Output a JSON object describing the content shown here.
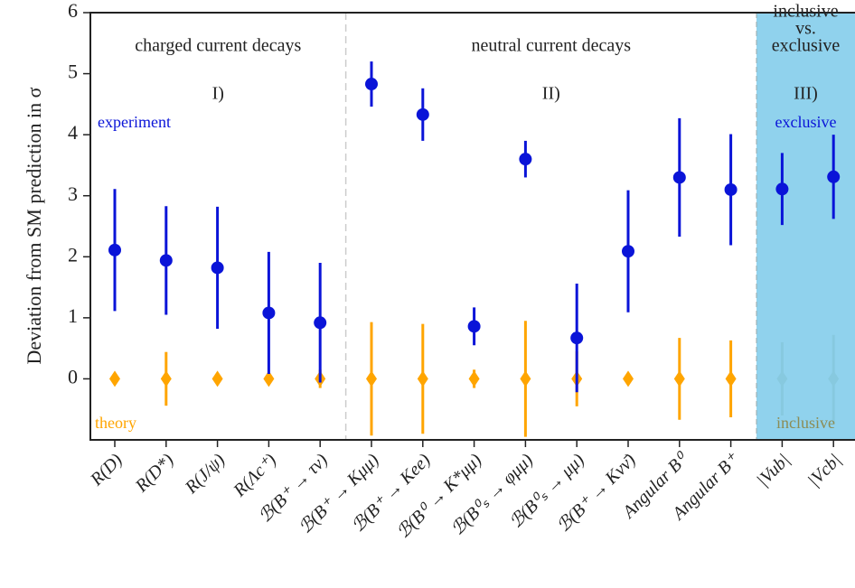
{
  "chart_data": {
    "type": "errorbar",
    "y_label": "Deviation from SM prediction in σ",
    "categories": [
      "R(D)",
      "R(D*)",
      "R(J/ψ)",
      "R(Λc⁺)",
      "ℬ(B⁺ → τν)",
      "ℬ(B⁺ → Kμμ)",
      "ℬ(B⁺ → Kee)",
      "ℬ(B⁰ → K*μμ)",
      "ℬ(B⁰ₛ → φμμ)",
      "ℬ(B⁰ₛ → μμ)",
      "ℬ(B⁺ → Kνν̄)",
      "Angular B⁰",
      "Angular B⁺",
      "|Vub|",
      "|Vcb|"
    ],
    "series": [
      {
        "name": "experiment",
        "region_name": "exclusive",
        "color": "#0a14d8",
        "marker": "circle",
        "values": [
          2.11,
          1.94,
          1.82,
          1.08,
          0.92,
          4.83,
          4.33,
          0.86,
          3.6,
          0.67,
          2.09,
          3.3,
          3.1,
          3.11,
          3.31
        ],
        "errors": [
          1.0,
          0.89,
          1.0,
          1.0,
          0.98,
          0.37,
          0.43,
          0.31,
          0.3,
          0.89,
          1.0,
          0.97,
          0.91,
          0.59,
          0.69
        ]
      },
      {
        "name": "theory",
        "region_name": "inclusive",
        "color": "#ffa500",
        "region_color": "#8c8c55",
        "marker": "diamond",
        "values": [
          0,
          0,
          0,
          0,
          0,
          0,
          0,
          0,
          0,
          0,
          0,
          0,
          0,
          0,
          0
        ],
        "errors": [
          0,
          0.44,
          0,
          0.05,
          0.15,
          0.93,
          0.9,
          0.15,
          0.95,
          0.45,
          0,
          0.67,
          0.63,
          0.6,
          0.72
        ]
      }
    ],
    "sections": [
      {
        "title": [
          "charged current decays"
        ],
        "number": "I)"
      },
      {
        "title": [
          "neutral current decays"
        ],
        "number": "II)"
      },
      {
        "title": [
          "inclusive",
          "vs.",
          "exclusive"
        ],
        "number": "III)"
      }
    ],
    "ylim": [
      -1,
      6
    ],
    "yticks": [
      0,
      1,
      2,
      3,
      4,
      5,
      6
    ],
    "region_color": "#87ceeb"
  }
}
